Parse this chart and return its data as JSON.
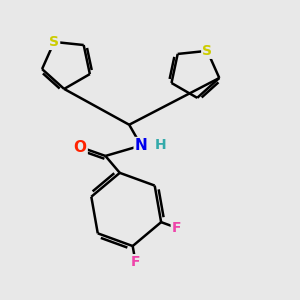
{
  "bg_color": "#e8e8e8",
  "bond_color": "#000000",
  "atom_colors": {
    "S": "#cccc00",
    "O": "#ff2200",
    "N": "#0000ee",
    "H": "#33aaaa",
    "F": "#ee44aa",
    "C": "#000000"
  },
  "bond_width": 1.8,
  "figsize": [
    3.0,
    3.0
  ],
  "dpi": 100
}
